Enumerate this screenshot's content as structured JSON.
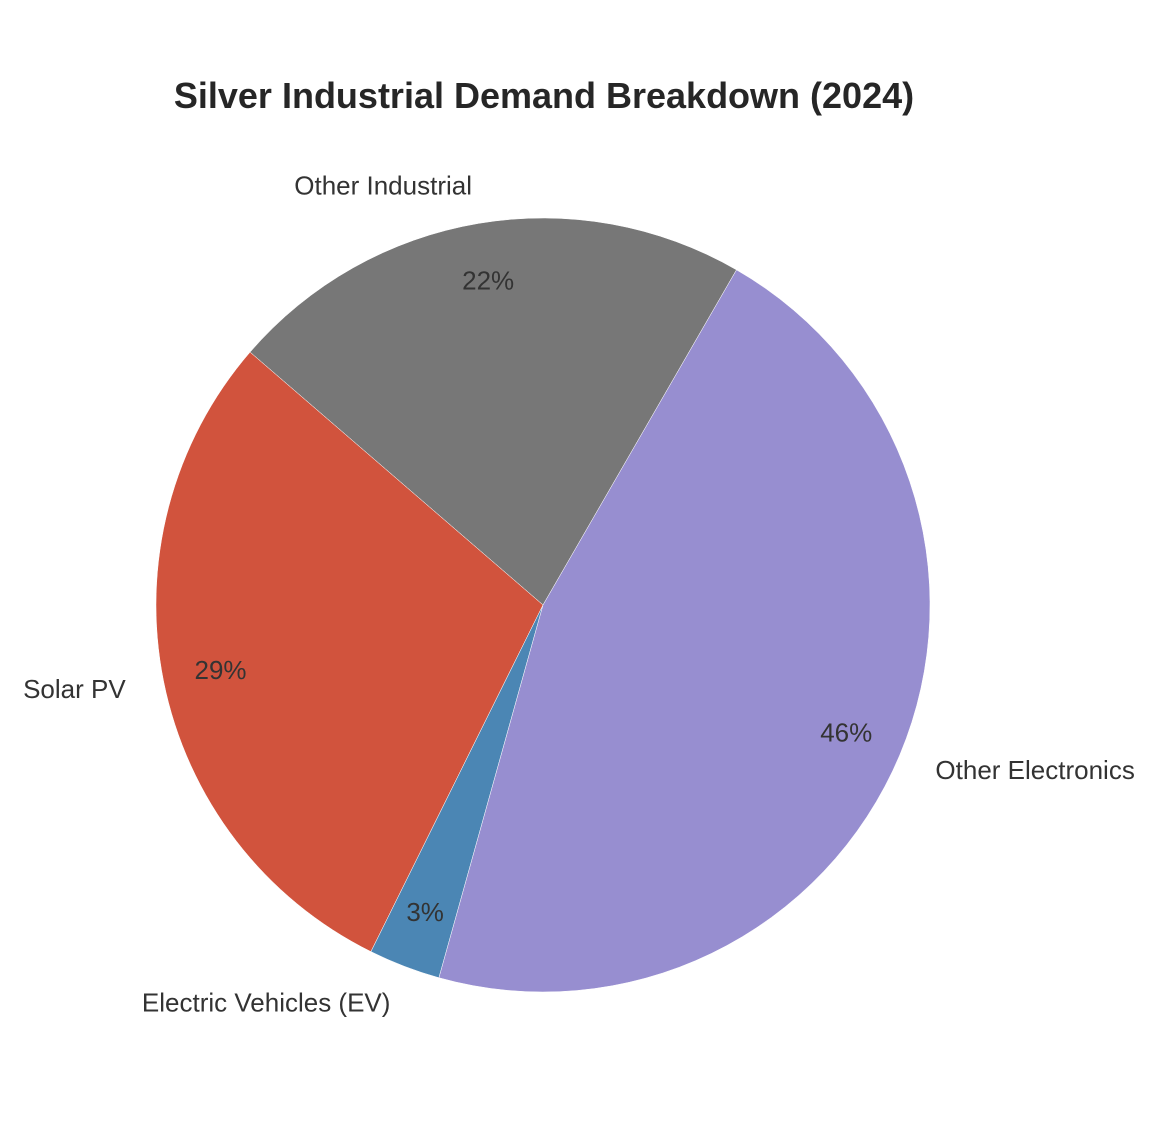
{
  "chart_data": {
    "type": "pie",
    "title": "Silver Industrial Demand Breakdown (2024)",
    "start_angle_deg": 60,
    "direction": "counterclockwise",
    "slices": [
      {
        "label": "Other Industrial",
        "value": 22,
        "pct_label": "22%",
        "color": "#777777"
      },
      {
        "label": "Solar PV",
        "value": 29,
        "pct_label": "29%",
        "color": "#d1533d"
      },
      {
        "label": "Electric Vehicles (EV)",
        "value": 3,
        "pct_label": "3%",
        "color": "#4b86b4"
      },
      {
        "label": "Other Electronics",
        "value": 46,
        "pct_label": "46%",
        "color": "#978ed0"
      }
    ]
  }
}
